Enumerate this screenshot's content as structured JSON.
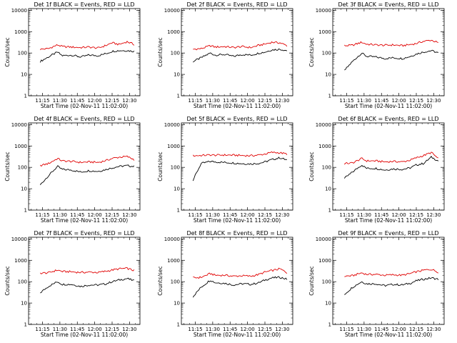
{
  "figure": {
    "x_tick_labels": [
      "11:15",
      "11:30",
      "11:45",
      "12:00",
      "12:15",
      "12:30"
    ],
    "y_tick_labels": [
      "1",
      "10",
      "100",
      "1000",
      "10000"
    ],
    "colors": {
      "events": "#000000",
      "lld": "#e00000",
      "axes": "#000000"
    }
  },
  "chart_data": [
    {
      "type": "line",
      "title": "Det 1f BLACK = Events, RED = LLD",
      "xlabel": "Start Time (02-Nov-11 11:02:00)",
      "ylabel": "Counts/sec",
      "y_scale": "log",
      "ylim": [
        1,
        12000
      ],
      "xlim": [
        "11:03",
        "12:39"
      ],
      "x": [
        "11:13",
        "11:20",
        "11:28",
        "11:32",
        "11:40",
        "11:48",
        "11:55",
        "12:03",
        "12:10",
        "12:15",
        "12:21",
        "12:28",
        "12:34"
      ],
      "series": [
        {
          "values": [
            40,
            65,
            110,
            75,
            80,
            65,
            80,
            75,
            95,
            120,
            130,
            130,
            120
          ]
        },
        {
          "values": [
            150,
            160,
            240,
            200,
            190,
            180,
            190,
            170,
            230,
            300,
            250,
            340,
            250
          ]
        }
      ]
    },
    {
      "type": "line",
      "title": "Det 2f BLACK = Events, RED = LLD",
      "xlabel": "Start Time (02-Nov-11 11:02:00)",
      "ylabel": "Counts/sec",
      "y_scale": "log",
      "ylim": [
        1,
        12000
      ],
      "xlim": [
        "11:03",
        "12:39"
      ],
      "x": [
        "11:13",
        "11:20",
        "11:28",
        "11:32",
        "11:40",
        "11:48",
        "11:55",
        "12:03",
        "12:10",
        "12:15",
        "12:21",
        "12:28",
        "12:34"
      ],
      "series": [
        {
          "values": [
            40,
            60,
            100,
            80,
            85,
            70,
            85,
            80,
            100,
            110,
            140,
            150,
            130
          ]
        },
        {
          "values": [
            150,
            160,
            220,
            190,
            200,
            180,
            200,
            180,
            230,
            260,
            320,
            300,
            220
          ]
        }
      ]
    },
    {
      "type": "line",
      "title": "Det 3f BLACK = Events, RED = LLD",
      "xlabel": "Start Time (02-Nov-11 11:02:00)",
      "ylabel": "Counts/sec",
      "y_scale": "log",
      "ylim": [
        1,
        12000
      ],
      "xlim": [
        "11:03",
        "12:39"
      ],
      "x": [
        "11:13",
        "11:20",
        "11:28",
        "11:32",
        "11:40",
        "11:48",
        "11:55",
        "12:03",
        "12:10",
        "12:15",
        "12:21",
        "12:28",
        "12:34"
      ],
      "series": [
        {
          "values": [
            15,
            40,
            100,
            70,
            65,
            55,
            60,
            55,
            70,
            90,
            110,
            130,
            100
          ]
        },
        {
          "values": [
            220,
            230,
            320,
            260,
            240,
            230,
            240,
            220,
            250,
            280,
            350,
            400,
            300
          ]
        }
      ]
    },
    {
      "type": "line",
      "title": "Det 4f BLACK = Events, RED = LLD",
      "xlabel": "Start Time (02-Nov-11 11:02:00)",
      "ylabel": "Counts/sec",
      "y_scale": "log",
      "ylim": [
        1,
        12000
      ],
      "xlim": [
        "11:03",
        "12:39"
      ],
      "x": [
        "11:13",
        "11:20",
        "11:28",
        "11:32",
        "11:40",
        "11:48",
        "11:55",
        "12:03",
        "12:10",
        "12:15",
        "12:21",
        "12:28",
        "12:34"
      ],
      "series": [
        {
          "values": [
            15,
            40,
            110,
            80,
            75,
            60,
            70,
            65,
            80,
            95,
            110,
            120,
            110
          ]
        },
        {
          "values": [
            120,
            150,
            260,
            200,
            190,
            170,
            180,
            170,
            210,
            260,
            300,
            320,
            230
          ]
        }
      ]
    },
    {
      "type": "line",
      "title": "Det 5f BLACK = Events, RED = LLD",
      "xlabel": "Start Time (02-Nov-11 11:02:00)",
      "ylabel": "Counts/sec",
      "y_scale": "log",
      "ylim": [
        1,
        12000
      ],
      "xlim": [
        "11:03",
        "12:39"
      ],
      "x": [
        "11:13",
        "11:20",
        "11:28",
        "11:32",
        "11:40",
        "11:48",
        "11:55",
        "12:03",
        "12:10",
        "12:15",
        "12:21",
        "12:28",
        "12:34"
      ],
      "series": [
        {
          "values": [
            25,
            150,
            190,
            180,
            170,
            160,
            150,
            145,
            155,
            180,
            230,
            280,
            220
          ]
        },
        {
          "values": [
            350,
            360,
            380,
            370,
            380,
            370,
            360,
            350,
            380,
            420,
            500,
            480,
            420
          ]
        }
      ]
    },
    {
      "type": "line",
      "title": "Det 6f BLACK = Events, RED = LLD",
      "xlabel": "Start Time (02-Nov-11 11:02:00)",
      "ylabel": "Counts/sec",
      "y_scale": "log",
      "ylim": [
        1,
        12000
      ],
      "xlim": [
        "11:03",
        "12:39"
      ],
      "x": [
        "11:13",
        "11:20",
        "11:28",
        "11:32",
        "11:40",
        "11:48",
        "11:55",
        "12:03",
        "12:10",
        "12:15",
        "12:21",
        "12:28",
        "12:34"
      ],
      "series": [
        {
          "values": [
            30,
            60,
            130,
            90,
            90,
            75,
            85,
            80,
            95,
            130,
            150,
            300,
            200
          ]
        },
        {
          "values": [
            150,
            160,
            260,
            200,
            200,
            180,
            190,
            180,
            220,
            280,
            350,
            500,
            250
          ]
        }
      ]
    },
    {
      "type": "line",
      "title": "Det 7f BLACK = Events, RED = LLD",
      "xlabel": "Start Time (02-Nov-11 11:02:00)",
      "ylabel": "Counts/sec",
      "y_scale": "log",
      "ylim": [
        1,
        12000
      ],
      "xlim": [
        "11:03",
        "12:39"
      ],
      "x": [
        "11:13",
        "11:20",
        "11:28",
        "11:32",
        "11:40",
        "11:48",
        "11:55",
        "12:03",
        "12:10",
        "12:15",
        "12:21",
        "12:28",
        "12:34"
      ],
      "series": [
        {
          "values": [
            30,
            60,
            100,
            75,
            75,
            60,
            70,
            70,
            80,
            100,
            120,
            140,
            110
          ]
        },
        {
          "values": [
            250,
            260,
            350,
            300,
            290,
            270,
            280,
            270,
            310,
            350,
            400,
            420,
            330
          ]
        }
      ]
    },
    {
      "type": "line",
      "title": "Det 8f BLACK = Events, RED = LLD",
      "xlabel": "Start Time (02-Nov-11 11:02:00)",
      "ylabel": "Counts/sec",
      "y_scale": "log",
      "ylim": [
        1,
        12000
      ],
      "xlim": [
        "11:03",
        "12:39"
      ],
      "x": [
        "11:13",
        "11:20",
        "11:28",
        "11:32",
        "11:40",
        "11:48",
        "11:55",
        "12:03",
        "12:10",
        "12:15",
        "12:21",
        "12:28",
        "12:34"
      ],
      "series": [
        {
          "values": [
            20,
            55,
            120,
            90,
            85,
            70,
            80,
            75,
            90,
            120,
            150,
            160,
            130
          ]
        },
        {
          "values": [
            150,
            160,
            240,
            200,
            200,
            180,
            190,
            180,
            220,
            280,
            330,
            400,
            260
          ]
        }
      ]
    },
    {
      "type": "line",
      "title": "Det 9f BLACK = Events, RED = LLD",
      "xlabel": "Start Time (02-Nov-11 11:02:00)",
      "ylabel": "Counts/sec",
      "y_scale": "log",
      "ylim": [
        1,
        12000
      ],
      "xlim": [
        "11:03",
        "12:39"
      ],
      "x": [
        "11:13",
        "11:20",
        "11:28",
        "11:32",
        "11:40",
        "11:48",
        "11:55",
        "12:03",
        "12:10",
        "12:15",
        "12:21",
        "12:28",
        "12:34"
      ],
      "series": [
        {
          "values": [
            25,
            55,
            100,
            80,
            80,
            65,
            75,
            70,
            85,
            110,
            130,
            150,
            130
          ]
        },
        {
          "values": [
            180,
            190,
            260,
            220,
            220,
            200,
            210,
            200,
            240,
            290,
            340,
            380,
            280
          ]
        }
      ]
    }
  ]
}
